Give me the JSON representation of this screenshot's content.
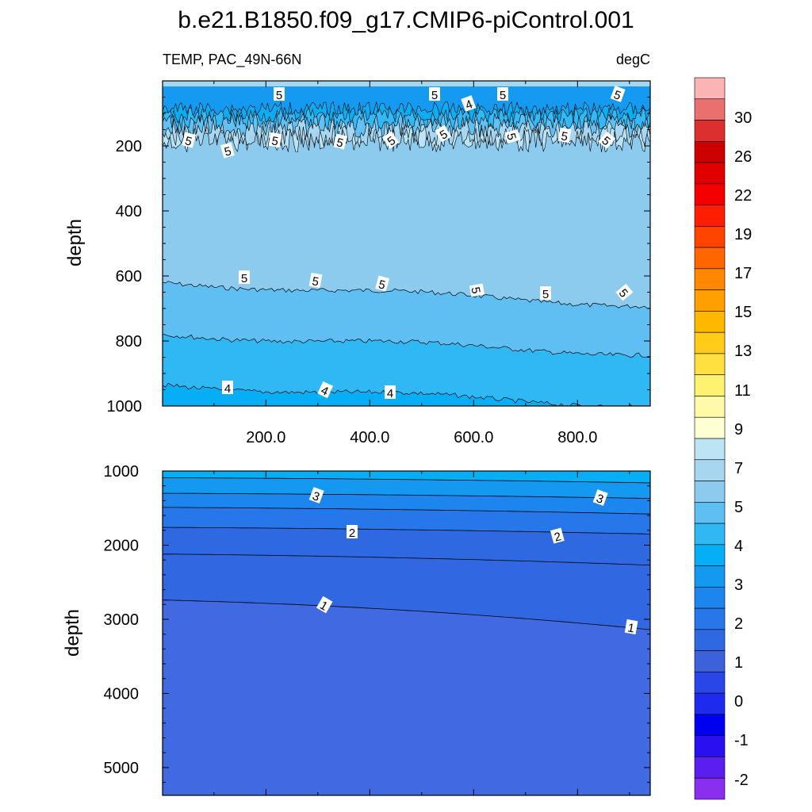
{
  "chart_data": {
    "type": "contour",
    "title": "b.e21.B1850.f09_g17.CMIP6-piControl.001",
    "variable_label": "TEMP, PAC_49N-66N",
    "units_label": "degC",
    "x_ticks": [
      "200.0",
      "400.0",
      "600.0",
      "800.0"
    ],
    "x_tick_values": [
      200,
      400,
      600,
      800
    ],
    "x_range": [
      1,
      940
    ],
    "colorbar": {
      "labels": [
        "30",
        "26",
        "22",
        "19",
        "17",
        "15",
        "13",
        "11",
        "9",
        "7",
        "5",
        "4",
        "3",
        "2",
        "1",
        "0",
        "-1",
        "-2"
      ],
      "colors": [
        "#fbb3b3",
        "#ea7070",
        "#dc3030",
        "#cc0000",
        "#e00000",
        "#f40000",
        "#ff1e00",
        "#ff4400",
        "#ff6600",
        "#ff8800",
        "#ffa000",
        "#ffb800",
        "#ffcc1a",
        "#ffe040",
        "#fff270",
        "#fffaa8",
        "#ffffd4",
        "#bde4f4",
        "#a6d6f0",
        "#8ccaee",
        "#5fbff2",
        "#30b8f4",
        "#06aef5",
        "#1599f0",
        "#1d86ee",
        "#2777ea",
        "#2e69e2",
        "#3c61db",
        "#2a45e8",
        "#1f2aef",
        "#0000f0",
        "#2a10f0",
        "#5a1ef0",
        "#8a2ef0"
      ]
    },
    "panels": [
      {
        "ylabel": "depth",
        "y_ticks": [
          "200",
          "400",
          "600",
          "800",
          "1000"
        ],
        "y_tick_values": [
          200,
          400,
          600,
          800,
          1000
        ],
        "y_range": [
          0,
          1000
        ],
        "contour_labels": [
          "5",
          "5",
          "4",
          "5",
          "5",
          "5",
          "5",
          "5",
          "5",
          "5",
          "5",
          "5",
          "5",
          "5",
          "5",
          "5",
          "5",
          "5",
          "5",
          "5",
          "4",
          "4",
          "4"
        ],
        "bands": [
          {
            "level_range": [
              5.5,
              6
            ],
            "color": "#8ccaee",
            "top_depth": 0,
            "bottom_depth_start": 620,
            "bottom_depth_end": 690
          },
          {
            "level_range": [
              5,
              5.5
            ],
            "color": "#5fbff2",
            "top_depth": 620,
            "bottom_depth_start": 780,
            "bottom_depth_end": 840
          },
          {
            "level_range": [
              4.5,
              5
            ],
            "color": "#30b8f4",
            "top_depth": 780,
            "bottom_depth_start": 935,
            "bottom_depth_end": 1000
          },
          {
            "level_range": [
              4,
              4.5
            ],
            "color": "#06aef5",
            "top_depth": 935,
            "bottom_depth_start": 1000,
            "bottom_depth_end": 1000
          }
        ]
      },
      {
        "ylabel": "depth",
        "y_ticks": [
          "1000",
          "2000",
          "3000",
          "4000",
          "5000"
        ],
        "y_tick_values": [
          1000,
          2000,
          3000,
          4000,
          5000
        ],
        "y_range": [
          1000,
          5375
        ],
        "contour_labels": [
          "3",
          "3",
          "2",
          "2",
          "1",
          "1"
        ],
        "contours": [
          {
            "level": 3.5,
            "depth_start": 1090,
            "depth_end": 1160
          },
          {
            "level": 3,
            "depth_start": 1300,
            "depth_end": 1370
          },
          {
            "level": 2.5,
            "depth_start": 1490,
            "depth_end": 1580
          },
          {
            "level": 2,
            "depth_start": 1760,
            "depth_end": 1850
          },
          {
            "level": 1.5,
            "depth_start": 2120,
            "depth_end": 2270
          },
          {
            "level": 1,
            "depth_start": 2740,
            "depth_end": 3140
          }
        ]
      }
    ]
  }
}
